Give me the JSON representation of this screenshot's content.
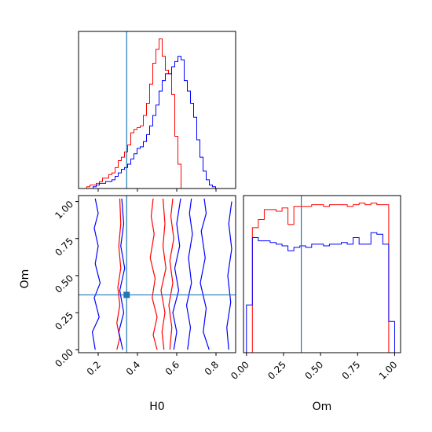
{
  "colors": {
    "red": "#ff0000",
    "blue": "#0000ff",
    "truth": "#1f77b4",
    "axes": "#000000"
  },
  "chart_data": [
    {
      "type": "histogram",
      "panel": "H0 marginal",
      "xlim": [
        0.1,
        0.9
      ],
      "truth": 0.345,
      "bin_edges": [
        0.11,
        0.126,
        0.142,
        0.158,
        0.174,
        0.19,
        0.206,
        0.222,
        0.238,
        0.254,
        0.27,
        0.286,
        0.302,
        0.318,
        0.334,
        0.35,
        0.366,
        0.382,
        0.398,
        0.414,
        0.43,
        0.446,
        0.462,
        0.478,
        0.494,
        0.51,
        0.526,
        0.542,
        0.558,
        0.574,
        0.59,
        0.606,
        0.622,
        0.638,
        0.654,
        0.67,
        0.686,
        0.702,
        0.718,
        0.734,
        0.75,
        0.766,
        0.782,
        0.798,
        0.814,
        0.83,
        0.846,
        0.862,
        0.878
      ],
      "series": [
        {
          "color": "red",
          "counts": [
            0,
            0,
            1,
            2,
            2,
            3,
            4,
            6,
            6,
            8,
            9,
            12,
            16,
            18,
            21,
            25,
            32,
            34,
            35,
            36,
            42,
            49,
            60,
            72,
            80,
            86,
            76,
            68,
            66,
            54,
            30,
            14,
            0,
            0,
            0,
            0,
            0,
            0,
            0,
            0,
            0,
            0,
            0,
            0,
            0,
            0,
            0,
            0
          ]
        },
        {
          "color": "blue",
          "counts": [
            0,
            0,
            0,
            0,
            1,
            2,
            3,
            3,
            4,
            4,
            5,
            7,
            9,
            11,
            12,
            14,
            17,
            20,
            23,
            24,
            27,
            31,
            36,
            42,
            48,
            56,
            62,
            66,
            66,
            70,
            73,
            76,
            74,
            62,
            56,
            49,
            41,
            28,
            18,
            10,
            5,
            2,
            1,
            0,
            0,
            0,
            0,
            0
          ]
        }
      ]
    },
    {
      "type": "contour",
      "panel": "H0 vs Om",
      "xlabel": "H0",
      "ylabel": "Om",
      "xlim": [
        0.1,
        0.9
      ],
      "ylim": [
        -0.02,
        1.04
      ],
      "xticks": [
        "0.2",
        "0.4",
        "0.6",
        "0.8"
      ],
      "yticks": [
        "0.00",
        "0.25",
        "0.50",
        "0.75",
        "1.00"
      ],
      "truth": [
        0.345,
        0.37
      ],
      "series": [
        {
          "color": "red",
          "contours": [
            [
              [
                0.295,
                0.0
              ],
              [
                0.31,
                0.08
              ],
              [
                0.295,
                0.18
              ],
              [
                0.31,
                0.3
              ],
              [
                0.3,
                0.42
              ],
              [
                0.315,
                0.55
              ],
              [
                0.305,
                0.7
              ],
              [
                0.315,
                0.85
              ],
              [
                0.31,
                1.02
              ]
            ],
            [
              [
                0.5,
                0.0
              ],
              [
                0.48,
                0.1
              ],
              [
                0.5,
                0.22
              ],
              [
                0.475,
                0.35
              ],
              [
                0.49,
                0.48
              ],
              [
                0.465,
                0.62
              ],
              [
                0.485,
                0.78
              ],
              [
                0.47,
                0.9
              ],
              [
                0.48,
                1.02
              ]
            ],
            [
              [
                0.535,
                0.0
              ],
              [
                0.525,
                0.12
              ],
              [
                0.54,
                0.25
              ],
              [
                0.52,
                0.4
              ],
              [
                0.545,
                0.55
              ],
              [
                0.53,
                0.7
              ],
              [
                0.54,
                0.85
              ],
              [
                0.53,
                1.02
              ]
            ],
            [
              [
                0.565,
                0.0
              ],
              [
                0.575,
                0.15
              ],
              [
                0.56,
                0.3
              ],
              [
                0.58,
                0.45
              ],
              [
                0.565,
                0.6
              ],
              [
                0.585,
                0.75
              ],
              [
                0.57,
                0.9
              ],
              [
                0.58,
                1.02
              ]
            ]
          ]
        },
        {
          "color": "blue",
          "contours": [
            [
              [
                0.185,
                0.0
              ],
              [
                0.17,
                0.12
              ],
              [
                0.205,
                0.22
              ],
              [
                0.18,
                0.35
              ],
              [
                0.21,
                0.45
              ],
              [
                0.185,
                0.58
              ],
              [
                0.2,
                0.7
              ],
              [
                0.18,
                0.82
              ],
              [
                0.2,
                0.92
              ],
              [
                0.185,
                1.02
              ]
            ],
            [
              [
                0.325,
                0.0
              ],
              [
                0.305,
                0.12
              ],
              [
                0.33,
                0.25
              ],
              [
                0.31,
                0.4
              ],
              [
                0.335,
                0.55
              ],
              [
                0.315,
                0.7
              ],
              [
                0.33,
                0.85
              ],
              [
                0.32,
                1.02
              ]
            ],
            [
              [
                0.585,
                0.0
              ],
              [
                0.6,
                0.12
              ],
              [
                0.58,
                0.25
              ],
              [
                0.61,
                0.4
              ],
              [
                0.59,
                0.55
              ],
              [
                0.615,
                0.7
              ],
              [
                0.6,
                0.85
              ],
              [
                0.62,
                1.02
              ]
            ],
            [
              [
                0.655,
                0.0
              ],
              [
                0.67,
                0.15
              ],
              [
                0.65,
                0.3
              ],
              [
                0.675,
                0.45
              ],
              [
                0.66,
                0.62
              ],
              [
                0.68,
                0.78
              ],
              [
                0.665,
                0.92
              ],
              [
                0.675,
                1.02
              ]
            ],
            [
              [
                0.765,
                0.0
              ],
              [
                0.735,
                0.12
              ],
              [
                0.75,
                0.28
              ],
              [
                0.72,
                0.45
              ],
              [
                0.745,
                0.62
              ],
              [
                0.725,
                0.8
              ],
              [
                0.75,
                0.92
              ],
              [
                0.74,
                1.02
              ]
            ],
            [
              [
                0.865,
                0.0
              ],
              [
                0.855,
                0.15
              ],
              [
                0.875,
                0.32
              ],
              [
                0.86,
                0.5
              ],
              [
                0.88,
                0.68
              ],
              [
                0.865,
                0.85
              ],
              [
                0.88,
                1.0
              ]
            ]
          ]
        }
      ]
    },
    {
      "type": "histogram",
      "panel": "Om marginal",
      "xlabel": "Om",
      "xlim": [
        -0.02,
        1.04
      ],
      "xticks": [
        "0.00",
        "0.25",
        "0.50",
        "0.75",
        "1.00"
      ],
      "truth": 0.37,
      "bin_edges": [
        0.0,
        0.04,
        0.08,
        0.12,
        0.16,
        0.2,
        0.24,
        0.28,
        0.32,
        0.36,
        0.4,
        0.44,
        0.48,
        0.52,
        0.56,
        0.6,
        0.64,
        0.68,
        0.72,
        0.76,
        0.8,
        0.84,
        0.88,
        0.92,
        0.96,
        1.0
      ],
      "series": [
        {
          "color": "red",
          "counts": [
            0,
            76,
            81,
            87,
            87,
            86,
            88,
            78,
            89,
            89,
            89,
            90,
            90,
            89,
            90,
            90,
            90,
            89,
            90,
            91,
            90,
            91,
            90,
            90,
            0
          ]
        },
        {
          "color": "blue",
          "counts": [
            29,
            70,
            68,
            68,
            67,
            66,
            65,
            62,
            64,
            65,
            64,
            66,
            66,
            65,
            66,
            66,
            67,
            66,
            70,
            66,
            66,
            73,
            72,
            66,
            19
          ]
        }
      ]
    }
  ]
}
